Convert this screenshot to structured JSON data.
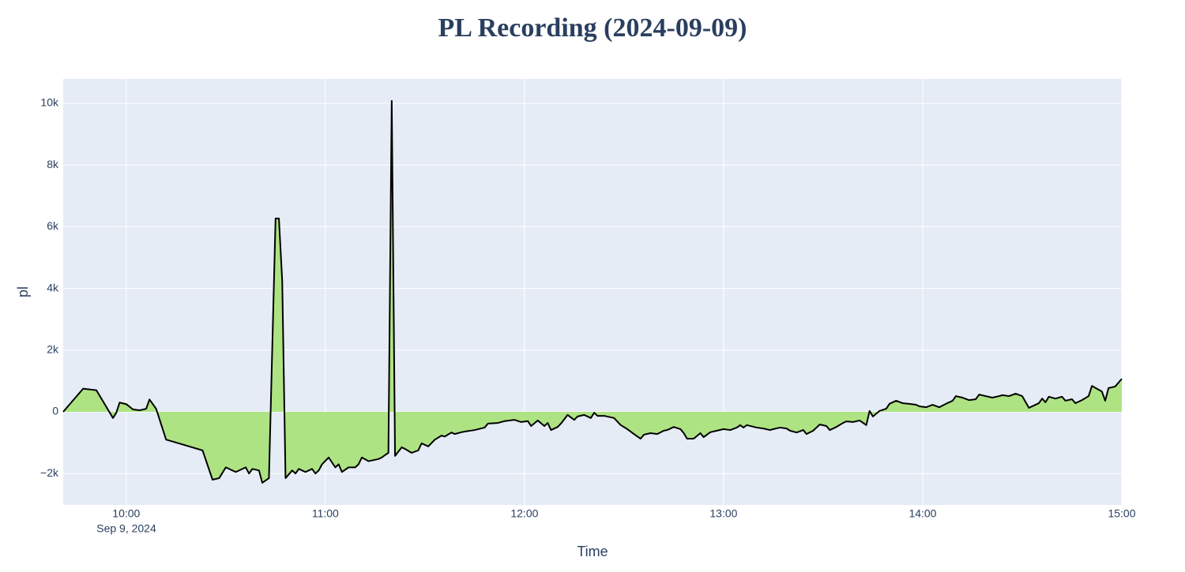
{
  "chart_data": {
    "type": "area",
    "title": "PL Recording (2024-09-09)",
    "x_label": "Time",
    "y_label": "pl",
    "x_date_label": "Sep 9, 2024",
    "xlim": [
      "09:41",
      "15:00"
    ],
    "xticks": [
      "10:00",
      "11:00",
      "12:00",
      "13:00",
      "14:00",
      "15:00"
    ],
    "ylim": [
      -3018,
      10793
    ],
    "yticks": [
      {
        "value": -2000,
        "label": "−2k"
      },
      0,
      {
        "value": 2000,
        "label": "2k"
      },
      {
        "value": 4000,
        "label": "4k"
      },
      {
        "value": 6000,
        "label": "6k"
      },
      {
        "value": 8000,
        "label": "8k"
      },
      {
        "value": 10000,
        "label": "10k"
      }
    ],
    "grid": true,
    "line_color": "#000000",
    "fill_color": "#aee383",
    "background": "#e5ecf6",
    "x": [
      "09:41",
      "09:47",
      "09:51",
      "09:56",
      "09:57",
      "09:58",
      "10:00",
      "10:02",
      "10:04",
      "10:06",
      "10:07",
      "10:09",
      "10:12",
      "10:23",
      "10:26",
      "10:28",
      "10:30",
      "10:33",
      "10:36",
      "10:37",
      "10:38",
      "10:40",
      "10:41",
      "10:43",
      "10:45",
      "10:46",
      "10:47",
      "10:48",
      "10:50",
      "10:51",
      "10:52",
      "10:54",
      "10:56",
      "10:57",
      "10:58",
      "10:59",
      "11:01",
      "11:03",
      "11:04",
      "11:05",
      "11:07",
      "11:09",
      "11:10",
      "11:11",
      "11:13",
      "11:16",
      "11:17",
      "11:18",
      "11:19",
      "11:20",
      "11:21",
      "11:23",
      "11:24",
      "11:26",
      "11:28",
      "11:29",
      "11:31",
      "11:33",
      "11:35",
      "11:36",
      "11:38",
      "11:39",
      "11:41",
      "11:42",
      "11:45",
      "11:48",
      "11:49",
      "11:52",
      "11:54",
      "11:57",
      "11:59",
      "12:01",
      "12:02",
      "12:04",
      "12:06",
      "12:07",
      "12:08",
      "12:10",
      "12:11",
      "12:13",
      "12:15",
      "12:16",
      "12:18",
      "12:20",
      "12:21",
      "12:22",
      "12:24",
      "12:27",
      "12:29",
      "12:31",
      "12:33",
      "12:35",
      "12:36",
      "12:38",
      "12:40",
      "12:42",
      "12:43",
      "12:45",
      "12:47",
      "12:48",
      "12:49",
      "12:51",
      "12:53",
      "12:54",
      "12:56",
      "12:58",
      "13:00",
      "13:02",
      "13:04",
      "13:05",
      "13:06",
      "13:07",
      "13:10",
      "13:12",
      "13:14",
      "13:15",
      "13:17",
      "13:19",
      "13:20",
      "13:22",
      "13:24",
      "13:25",
      "13:27",
      "13:29",
      "13:31",
      "13:32",
      "13:34",
      "13:36",
      "13:37",
      "13:39",
      "13:41",
      "13:43",
      "13:44",
      "13:45",
      "13:47",
      "13:49",
      "13:50",
      "13:52",
      "13:54",
      "13:56",
      "13:58",
      "13:59",
      "14:01",
      "14:03",
      "14:05",
      "14:07",
      "14:09",
      "14:10",
      "14:12",
      "14:14",
      "14:16",
      "14:17",
      "14:19",
      "14:21",
      "14:23",
      "14:24",
      "14:26",
      "14:28",
      "14:30",
      "14:32",
      "14:35",
      "14:36",
      "14:37",
      "14:38",
      "14:40",
      "14:42",
      "14:43",
      "14:45",
      "14:46",
      "14:48",
      "14:50",
      "14:51",
      "14:53",
      "14:54",
      "14:55",
      "14:56",
      "14:58",
      "15:00"
    ],
    "values": [
      0,
      750,
      700,
      -200,
      -30,
      300,
      250,
      80,
      50,
      100,
      400,
      100,
      -900,
      -1250,
      -2200,
      -2150,
      -1800,
      -1950,
      -1800,
      -2000,
      -1850,
      -1900,
      -2300,
      -2150,
      6270,
      6270,
      4250,
      -2150,
      -1900,
      -2000,
      -1850,
      -1950,
      -1850,
      -2000,
      -1900,
      -1700,
      -1480,
      -1800,
      -1700,
      -1950,
      -1800,
      -1800,
      -1700,
      -1480,
      -1600,
      -1530,
      -1480,
      -1400,
      -1330,
      10080,
      -1430,
      -1150,
      -1200,
      -1330,
      -1250,
      -1020,
      -1120,
      -900,
      -770,
      -800,
      -670,
      -720,
      -660,
      -640,
      -590,
      -510,
      -380,
      -360,
      -300,
      -260,
      -330,
      -300,
      -460,
      -280,
      -460,
      -360,
      -590,
      -490,
      -380,
      -100,
      -260,
      -150,
      -100,
      -200,
      -30,
      -130,
      -130,
      -200,
      -430,
      -560,
      -720,
      -870,
      -740,
      -690,
      -720,
      -610,
      -590,
      -490,
      -560,
      -690,
      -870,
      -870,
      -690,
      -820,
      -660,
      -610,
      -560,
      -590,
      -510,
      -430,
      -510,
      -430,
      -510,
      -540,
      -590,
      -560,
      -510,
      -540,
      -610,
      -670,
      -590,
      -720,
      -610,
      -410,
      -460,
      -590,
      -490,
      -360,
      -310,
      -330,
      -280,
      -430,
      30,
      -150,
      30,
      100,
      260,
      360,
      280,
      260,
      230,
      180,
      150,
      230,
      150,
      260,
      360,
      510,
      460,
      380,
      410,
      560,
      510,
      460,
      510,
      540,
      510,
      590,
      510,
      130,
      280,
      430,
      310,
      490,
      430,
      490,
      360,
      410,
      280,
      380,
      510,
      840,
      720,
      660,
      360,
      770,
      820,
      1070
    ]
  }
}
